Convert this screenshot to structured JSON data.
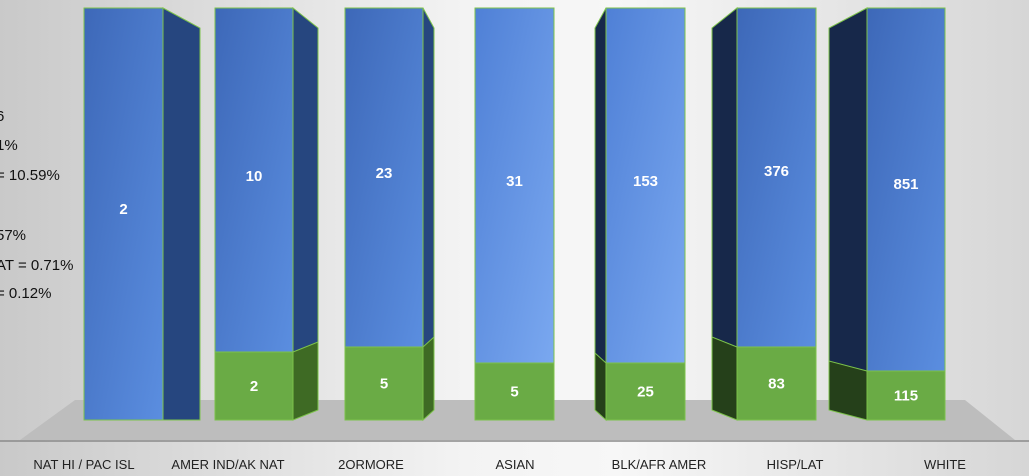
{
  "colors": {
    "series_top": "#4a78cf",
    "series_top_light": "#6a9ae8",
    "series_top_side": "#26467f",
    "series_top_dark": "#17284a",
    "series_bottom": "#6aab45",
    "series_bottom_side": "#3e6a24",
    "series_bottom_dark": "#25401a",
    "outline": "#7cc24a",
    "floor": "#bdbdbd",
    "axis_line": "#8a8a8a"
  },
  "legend_partial": [
    "6",
    "1%",
    "= 10.59%",
    "",
    "57%",
    "AT = 0.71%",
    "= 0.12%"
  ],
  "chart_data": {
    "type": "bar",
    "stacked": true,
    "style": "3d-columns-equal-height",
    "categories": [
      "NAT HI / PAC ISL",
      "AMER IND/AK NAT",
      "2ORMORE",
      "ASIAN",
      "BLK/AFR AMER",
      "HISP/LAT",
      "WHITE"
    ],
    "series": [
      {
        "values": [
          null,
          2,
          5,
          5,
          25,
          83,
          115
        ]
      },
      {
        "values": [
          2,
          10,
          23,
          31,
          153,
          376,
          851
        ]
      }
    ],
    "data_labels": true,
    "legend": "none",
    "grid": false
  }
}
